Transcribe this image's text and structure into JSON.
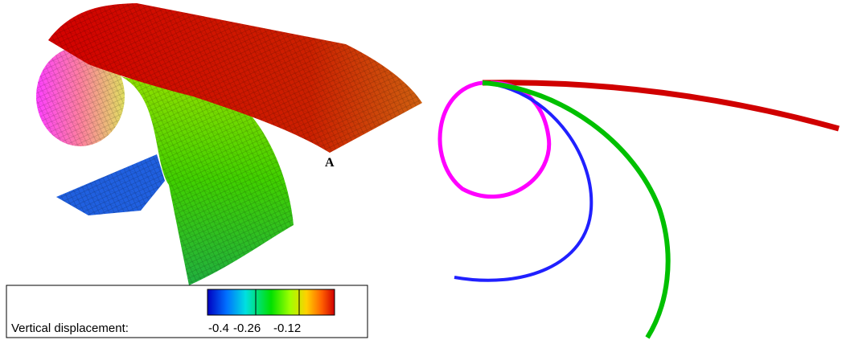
{
  "labels": {
    "point": "A"
  },
  "legend": {
    "title": "Vertical displacement:",
    "ticks": [
      "-0.4",
      "-0.26",
      "-0.12"
    ]
  }
}
